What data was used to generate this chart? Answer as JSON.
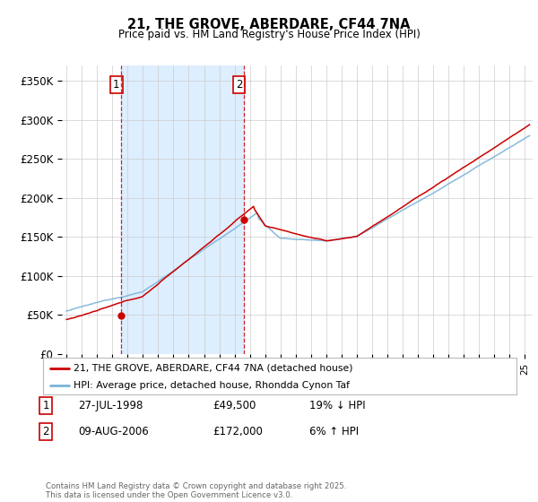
{
  "title": "21, THE GROVE, ABERDARE, CF44 7NA",
  "subtitle": "Price paid vs. HM Land Registry's House Price Index (HPI)",
  "ylabel_ticks": [
    "£0",
    "£50K",
    "£100K",
    "£150K",
    "£200K",
    "£250K",
    "£300K",
    "£350K"
  ],
  "ytick_values": [
    0,
    50000,
    100000,
    150000,
    200000,
    250000,
    300000,
    350000
  ],
  "ylim": [
    0,
    370000
  ],
  "xlim_start": 1994.7,
  "xlim_end": 2025.5,
  "hpi_color": "#7ab4d8",
  "price_color": "#cc0000",
  "shade_color": "#ddeeff",
  "purchase1_x": 1998.57,
  "purchase1_y": 49500,
  "purchase2_x": 2006.6,
  "purchase2_y": 172000,
  "legend_line1": "21, THE GROVE, ABERDARE, CF44 7NA (detached house)",
  "legend_line2": "HPI: Average price, detached house, Rhondda Cynon Taf",
  "table_row1_num": "1",
  "table_row1_date": "27-JUL-1998",
  "table_row1_price": "£49,500",
  "table_row1_hpi": "19% ↓ HPI",
  "table_row2_num": "2",
  "table_row2_date": "09-AUG-2006",
  "table_row2_price": "£172,000",
  "table_row2_hpi": "6% ↑ HPI",
  "footer": "Contains HM Land Registry data © Crown copyright and database right 2025.\nThis data is licensed under the Open Government Licence v3.0.",
  "background_color": "#ffffff"
}
